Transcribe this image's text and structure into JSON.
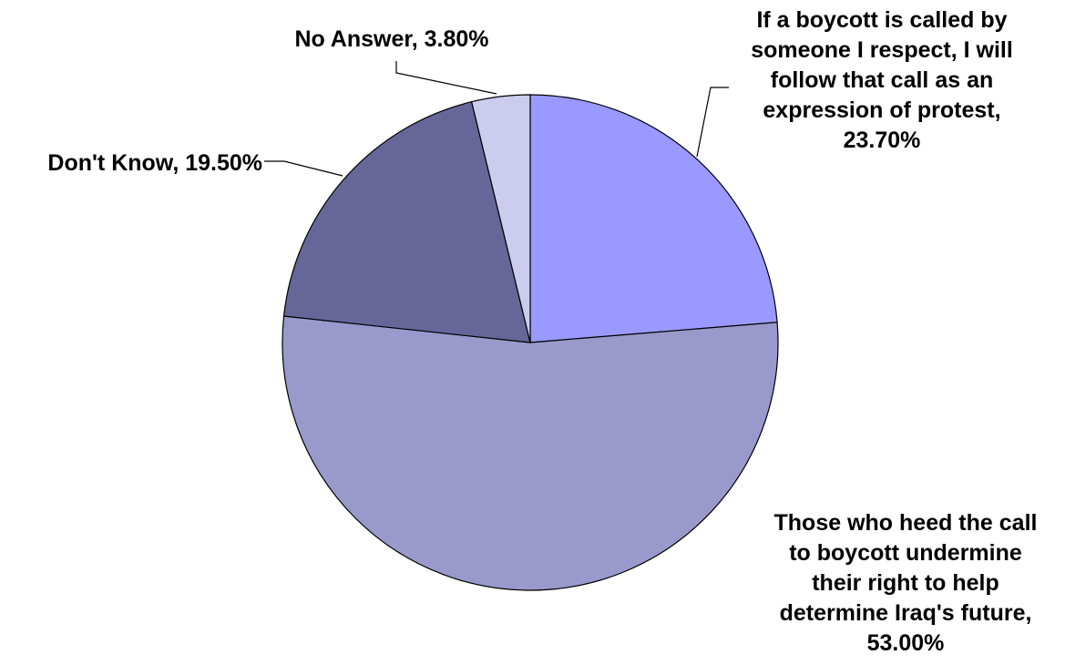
{
  "chart_data": {
    "type": "pie",
    "start_angle_deg": 0,
    "direction": "clockwise",
    "legend": "none",
    "slices": [
      {
        "label_lines": [
          "If a boycott is called by",
          "someone I respect, I will",
          "follow that call as an",
          "expression of protest,",
          "23.70%"
        ],
        "value": 23.7,
        "color": "#9999ff"
      },
      {
        "label_lines": [
          "Those who heed the call",
          "to boycott undermine",
          "their right to help",
          "determine Iraq's future,",
          "53.00%"
        ],
        "value": 53.0,
        "color": "#9999cc"
      },
      {
        "label_lines": [
          "Don't Know, 19.50%"
        ],
        "value": 19.5,
        "color": "#666699"
      },
      {
        "label_lines": [
          "No Answer, 3.80%"
        ],
        "value": 3.8,
        "color": "#ccccee"
      }
    ]
  }
}
